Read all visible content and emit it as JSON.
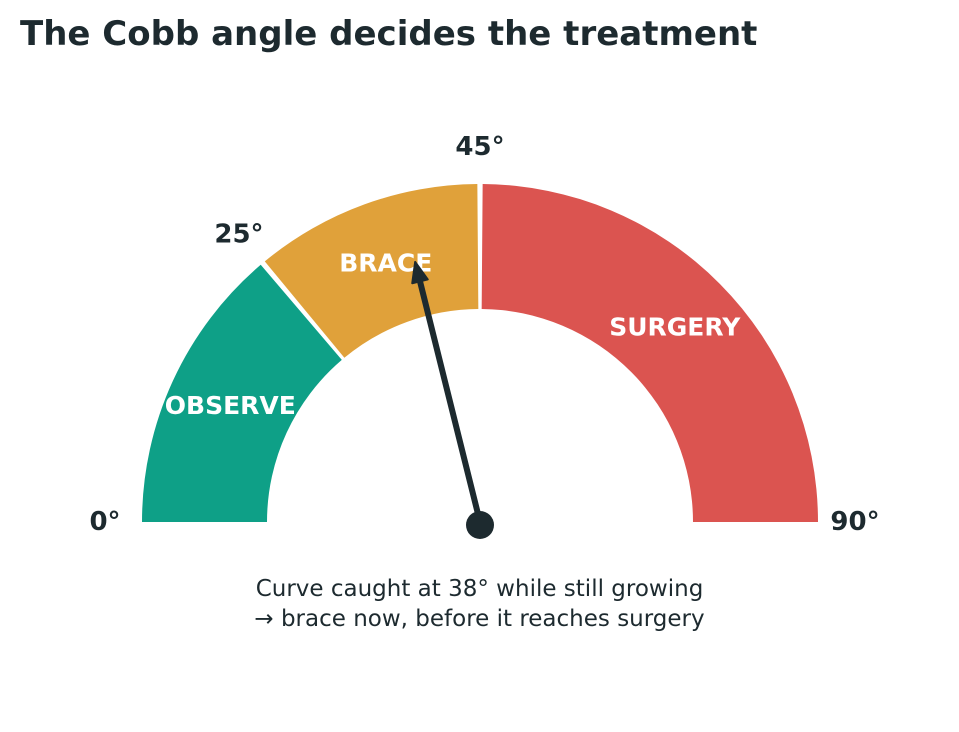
{
  "title": "The Cobb angle decides the treatment",
  "caption": {
    "line1": "Curve caught at 38° while still growing",
    "line2": "→ brace now, before it reaches surgery"
  },
  "chart_data": {
    "type": "gauge",
    "title": "The Cobb angle decides the treatment",
    "unit": "°",
    "range": [
      0,
      90
    ],
    "zones": [
      {
        "label": "OBSERVE",
        "from": 0,
        "to": 25,
        "color": "#0ea087"
      },
      {
        "label": "BRACE",
        "from": 25,
        "to": 45,
        "color": "#e0a13a"
      },
      {
        "label": "SURGERY",
        "from": 45,
        "to": 90,
        "color": "#db5450"
      }
    ],
    "ticks": [
      {
        "value": 0,
        "label": "0°"
      },
      {
        "value": 25,
        "label": "25°"
      },
      {
        "value": 45,
        "label": "45°"
      },
      {
        "value": 90,
        "label": "90°"
      }
    ],
    "needle_value": 38,
    "colors": {
      "needle": "#1d2a2f",
      "text": "#1d2a2f"
    }
  }
}
